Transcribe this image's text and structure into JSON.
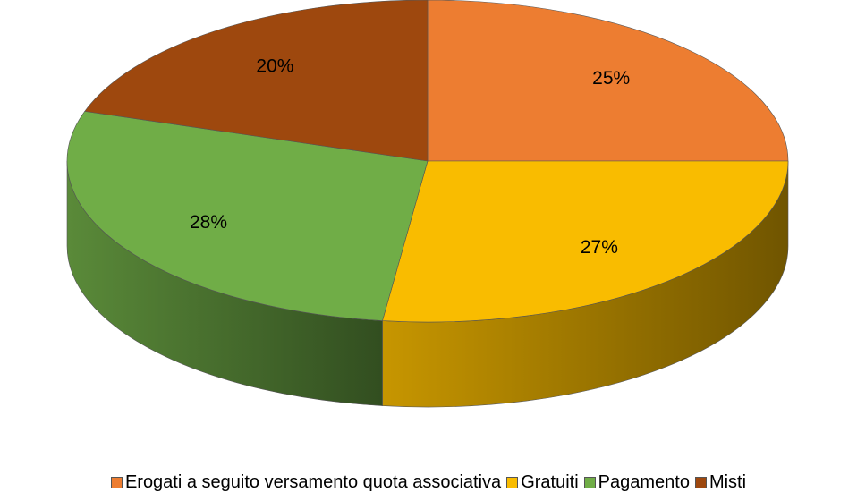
{
  "chart_data": {
    "type": "pie",
    "categories": [
      "Erogati a seguito versamento quota associativa",
      "Gratuiti",
      "Pagamento",
      "Misti"
    ],
    "values": [
      25,
      27,
      28,
      20
    ],
    "value_labels": [
      "25%",
      "27%",
      "28%",
      "20%"
    ],
    "colors": [
      "#ED7D31",
      "#F9BC00",
      "#70AD47",
      "#9E480E"
    ],
    "legend": "bottom"
  }
}
